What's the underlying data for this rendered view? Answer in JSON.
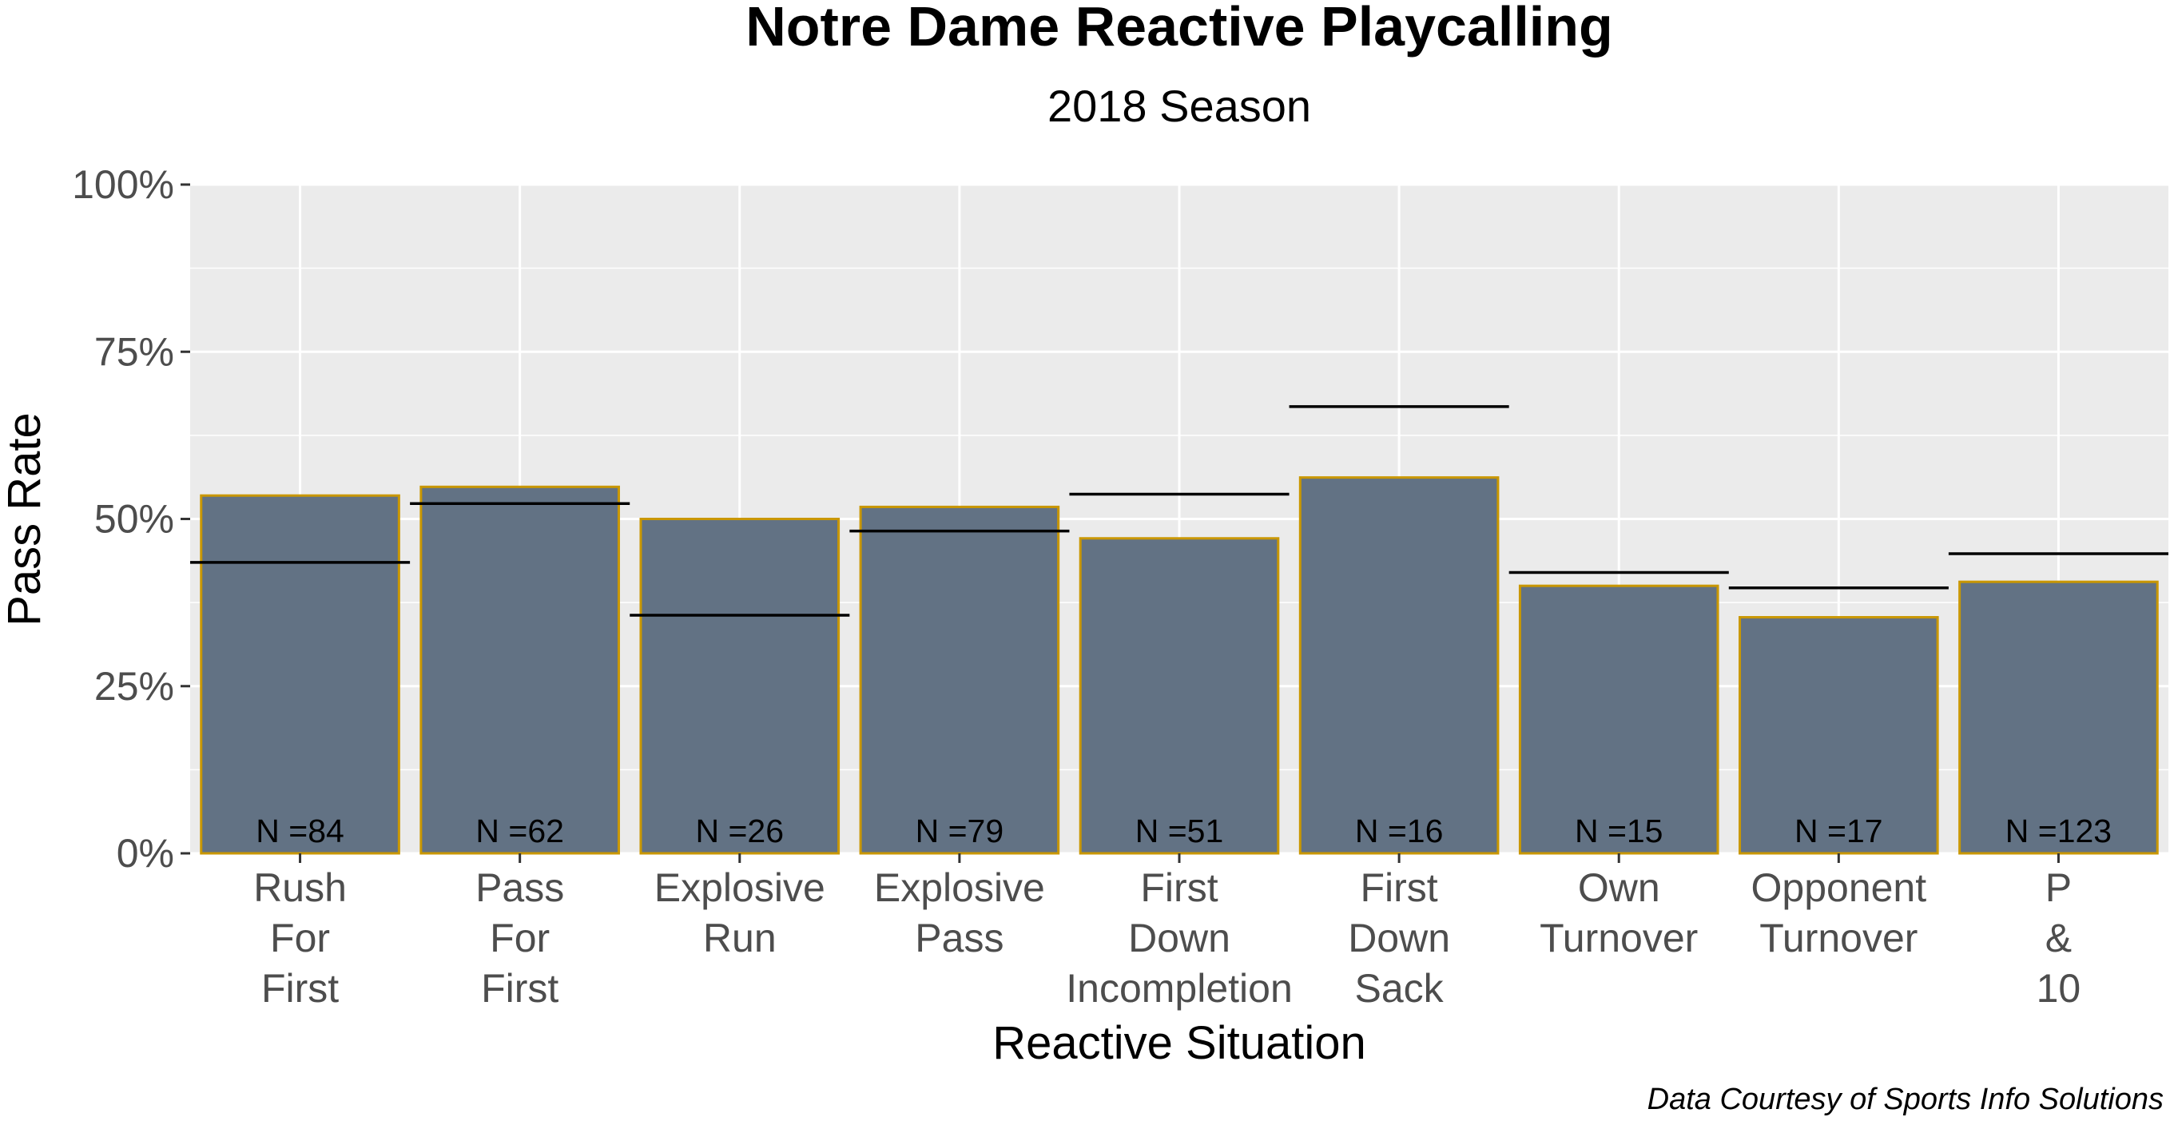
{
  "chart_data": {
    "type": "bar",
    "title": "Notre Dame Reactive Playcalling",
    "subtitle": "2018 Season",
    "xlabel": "Reactive Situation",
    "ylabel": "Pass Rate",
    "caption": "Data Courtesy of Sports Info Solutions",
    "ylim": [
      0,
      1
    ],
    "y_ticks": [
      {
        "value": 0,
        "label": "0%"
      },
      {
        "value": 0.25,
        "label": "25%"
      },
      {
        "value": 0.5,
        "label": "50%"
      },
      {
        "value": 0.75,
        "label": "75%"
      },
      {
        "value": 1,
        "label": "100%"
      }
    ],
    "grid": true,
    "categories": [
      [
        "Rush",
        "For",
        "First"
      ],
      [
        "Pass",
        "For",
        "First"
      ],
      [
        "Explosive",
        "Run"
      ],
      [
        "Explosive",
        "Pass"
      ],
      [
        "First",
        "Down",
        "Incompletion"
      ],
      [
        "First",
        "Down",
        "Sack"
      ],
      [
        "Own",
        "Turnover"
      ],
      [
        "Opponent",
        "Turnover"
      ],
      [
        "P",
        "&",
        "10"
      ]
    ],
    "values": [
      0.535,
      0.548,
      0.5,
      0.518,
      0.471,
      0.562,
      0.4,
      0.353,
      0.406
    ],
    "reference_values": [
      0.435,
      0.523,
      0.356,
      0.482,
      0.537,
      0.668,
      0.42,
      0.397,
      0.448
    ],
    "n_labels": [
      "N =84",
      "N =62",
      "N =26",
      "N =79",
      "N =51",
      "N =16",
      "N =15",
      "N =17",
      "N =123"
    ],
    "colors": {
      "bar_fill": "#627284",
      "bar_outline": "#c99700",
      "panel_background": "#ebebeb",
      "grid_major": "#ffffff",
      "reference_line": "#000000"
    }
  }
}
